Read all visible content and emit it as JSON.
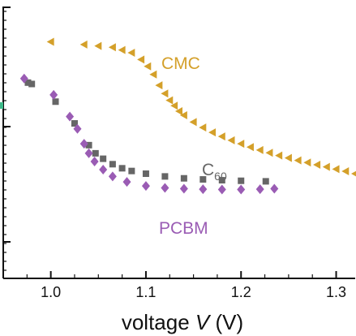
{
  "chart_data": {
    "type": "scatter",
    "title": "",
    "xlabel": {
      "prefix": "voltage ",
      "symbol": "V",
      "suffix": " (V)"
    },
    "ylabel": "",
    "xlim": [
      0.95,
      1.32
    ],
    "ylim": [
      0,
      1
    ],
    "y_ticks_labeled": false,
    "x_ticks": [
      "1.0",
      "1.1",
      "1.2",
      "1.3"
    ],
    "grid": false,
    "legend": "none",
    "series": [
      {
        "name": "CMC",
        "label_parts": [
          "CMC"
        ],
        "color": "#d4a02a",
        "marker": "triangle",
        "x": [
          1.0,
          1.035,
          1.05,
          1.065,
          1.075,
          1.085,
          1.095,
          1.102,
          1.108,
          1.114,
          1.12,
          1.125,
          1.13,
          1.135,
          1.14,
          1.15,
          1.16,
          1.17,
          1.18,
          1.19,
          1.2,
          1.21,
          1.22,
          1.23,
          1.24,
          1.25,
          1.26,
          1.27,
          1.28,
          1.29,
          1.3,
          1.31,
          1.32
        ],
        "y": [
          0.87,
          0.86,
          0.855,
          0.85,
          0.84,
          0.83,
          0.805,
          0.78,
          0.75,
          0.71,
          0.68,
          0.655,
          0.635,
          0.615,
          0.6,
          0.575,
          0.555,
          0.537,
          0.522,
          0.508,
          0.495,
          0.483,
          0.472,
          0.462,
          0.452,
          0.443,
          0.434,
          0.426,
          0.418,
          0.41,
          0.402,
          0.394,
          0.385
        ]
      },
      {
        "name": "C60",
        "label_parts": [
          "C",
          "60"
        ],
        "color": "#666666",
        "marker": "square",
        "x": [
          0.976,
          0.98,
          1.005,
          1.025,
          1.04,
          1.047,
          1.055,
          1.065,
          1.075,
          1.085,
          1.1,
          1.12,
          1.14,
          1.16,
          1.18,
          1.2,
          1.226
        ],
        "y": [
          0.72,
          0.715,
          0.65,
          0.57,
          0.49,
          0.46,
          0.44,
          0.42,
          0.405,
          0.395,
          0.385,
          0.375,
          0.368,
          0.364,
          0.361,
          0.359,
          0.357
        ]
      },
      {
        "name": "PCBM",
        "label_parts": [
          "PCBM"
        ],
        "color": "#9a5cb4",
        "marker": "diamond",
        "x": [
          0.972,
          1.003,
          1.02,
          1.028,
          1.035,
          1.04,
          1.046,
          1.055,
          1.065,
          1.08,
          1.1,
          1.12,
          1.14,
          1.16,
          1.18,
          1.2,
          1.22,
          1.235
        ],
        "y": [
          0.735,
          0.675,
          0.595,
          0.55,
          0.495,
          0.46,
          0.43,
          0.4,
          0.375,
          0.355,
          0.34,
          0.333,
          0.33,
          0.328,
          0.327,
          0.327,
          0.328,
          0.33
        ]
      }
    ]
  }
}
